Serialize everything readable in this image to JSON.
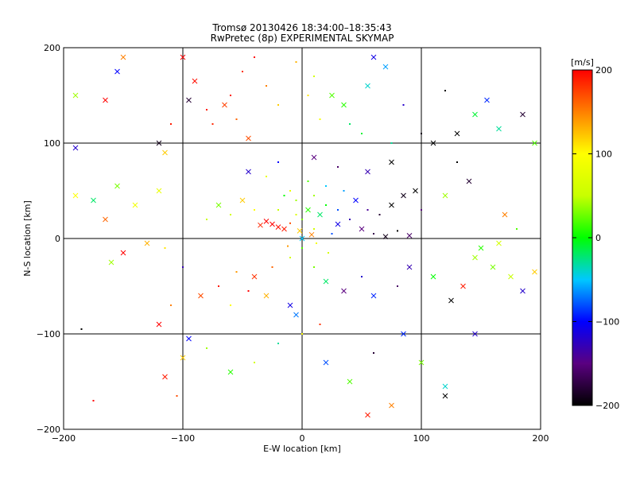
{
  "chart_data": {
    "type": "scatter",
    "title": "Tromsø 20130426 18:34:00–18:35:43",
    "subtitle": "RwPretec (8p) EXPERIMENTAL SKYMAP",
    "xlabel": "E-W location [km]",
    "ylabel": "N-S location [km]",
    "xlim": [
      -200,
      200
    ],
    "ylim": [
      -200,
      200
    ],
    "x_ticks": [
      "−200",
      "−100",
      "0",
      "100",
      "200"
    ],
    "x_tick_values": [
      -200,
      -100,
      0,
      100,
      200
    ],
    "y_ticks": [
      "−200",
      "−100",
      "0",
      "100",
      "200"
    ],
    "y_tick_values": [
      -200,
      -100,
      0,
      100,
      200
    ],
    "grid": true,
    "colorbar": {
      "label": "[m/s]",
      "range": [
        -200,
        200
      ],
      "ticks": [
        "−200",
        "−100",
        "0",
        "100",
        "200"
      ],
      "tick_values": [
        -200,
        -100,
        0,
        100,
        200
      ],
      "colormap": [
        "#000000",
        "#5a0080",
        "#0000ff",
        "#00c8ff",
        "#00ff00",
        "#c8ff00",
        "#ffff00",
        "#ff8000",
        "#ff0000"
      ]
    },
    "markers": [
      "dot",
      "x"
    ],
    "points": [
      {
        "x": -60,
        "y": 150,
        "v": 190,
        "m": "dot"
      },
      {
        "x": -75,
        "y": 120,
        "v": 185,
        "m": "dot"
      },
      {
        "x": -90,
        "y": 165,
        "v": 195,
        "m": "x"
      },
      {
        "x": -50,
        "y": 175,
        "v": 180,
        "m": "dot"
      },
      {
        "x": -40,
        "y": 190,
        "v": 200,
        "m": "dot"
      },
      {
        "x": -65,
        "y": 140,
        "v": 175,
        "m": "x"
      },
      {
        "x": -80,
        "y": 135,
        "v": 190,
        "m": "dot"
      },
      {
        "x": -55,
        "y": 125,
        "v": 160,
        "m": "dot"
      },
      {
        "x": -100,
        "y": 190,
        "v": 200,
        "m": "x"
      },
      {
        "x": -30,
        "y": 160,
        "v": 150,
        "m": "dot"
      },
      {
        "x": -20,
        "y": 140,
        "v": 120,
        "m": "dot"
      },
      {
        "x": -45,
        "y": 105,
        "v": 170,
        "m": "x"
      },
      {
        "x": -95,
        "y": 145,
        "v": -180,
        "m": "x"
      },
      {
        "x": -150,
        "y": 190,
        "v": 150,
        "m": "x"
      },
      {
        "x": -165,
        "y": 145,
        "v": 200,
        "m": "x"
      },
      {
        "x": -190,
        "y": 150,
        "v": 40,
        "m": "x"
      },
      {
        "x": -155,
        "y": 175,
        "v": -100,
        "m": "x"
      },
      {
        "x": -110,
        "y": 120,
        "v": 190,
        "m": "dot"
      },
      {
        "x": 10,
        "y": 170,
        "v": 60,
        "m": "dot"
      },
      {
        "x": 25,
        "y": 150,
        "v": 20,
        "m": "x"
      },
      {
        "x": 40,
        "y": 120,
        "v": -20,
        "m": "dot"
      },
      {
        "x": 55,
        "y": 160,
        "v": -40,
        "m": "x"
      },
      {
        "x": 70,
        "y": 180,
        "v": -60,
        "m": "x"
      },
      {
        "x": 85,
        "y": 140,
        "v": -120,
        "m": "dot"
      },
      {
        "x": 60,
        "y": 190,
        "v": -110,
        "m": "x"
      },
      {
        "x": 35,
        "y": 140,
        "v": 10,
        "m": "x"
      },
      {
        "x": 15,
        "y": 125,
        "v": 90,
        "m": "dot"
      },
      {
        "x": 5,
        "y": 150,
        "v": 110,
        "m": "dot"
      },
      {
        "x": -5,
        "y": 185,
        "v": 130,
        "m": "dot"
      },
      {
        "x": 50,
        "y": 110,
        "v": -10,
        "m": "dot"
      },
      {
        "x": 100,
        "y": 110,
        "v": -190,
        "m": "dot"
      },
      {
        "x": 110,
        "y": 100,
        "v": -200,
        "m": "x"
      },
      {
        "x": 155,
        "y": 145,
        "v": -90,
        "m": "x"
      },
      {
        "x": 165,
        "y": 115,
        "v": -30,
        "m": "x"
      },
      {
        "x": 185,
        "y": 130,
        "v": -180,
        "m": "x"
      },
      {
        "x": 195,
        "y": 100,
        "v": 20,
        "m": "x"
      },
      {
        "x": 130,
        "y": 110,
        "v": -200,
        "m": "x"
      },
      {
        "x": 145,
        "y": 130,
        "v": -10,
        "m": "x"
      },
      {
        "x": 120,
        "y": 155,
        "v": -200,
        "m": "dot"
      },
      {
        "x": 75,
        "y": 100,
        "v": -30,
        "m": "dot"
      },
      {
        "x": -25,
        "y": 15,
        "v": 200,
        "m": "x"
      },
      {
        "x": -20,
        "y": 12,
        "v": 195,
        "m": "x"
      },
      {
        "x": -30,
        "y": 18,
        "v": 200,
        "m": "x"
      },
      {
        "x": -15,
        "y": 10,
        "v": 190,
        "m": "x"
      },
      {
        "x": -35,
        "y": 14,
        "v": 185,
        "m": "x"
      },
      {
        "x": -10,
        "y": 16,
        "v": 170,
        "m": "dot"
      },
      {
        "x": 0,
        "y": 20,
        "v": 30,
        "m": "dot"
      },
      {
        "x": 5,
        "y": 30,
        "v": 10,
        "m": "x"
      },
      {
        "x": -5,
        "y": 40,
        "v": 40,
        "m": "dot"
      },
      {
        "x": 10,
        "y": 10,
        "v": 60,
        "m": "dot"
      },
      {
        "x": 15,
        "y": 25,
        "v": -20,
        "m": "x"
      },
      {
        "x": 20,
        "y": 35,
        "v": 0,
        "m": "dot"
      },
      {
        "x": -10,
        "y": 50,
        "v": 80,
        "m": "dot"
      },
      {
        "x": 0,
        "y": 0,
        "v": -50,
        "m": "x"
      },
      {
        "x": 25,
        "y": 5,
        "v": -80,
        "m": "dot"
      },
      {
        "x": 30,
        "y": 15,
        "v": -110,
        "m": "x"
      },
      {
        "x": 40,
        "y": 20,
        "v": -130,
        "m": "dot"
      },
      {
        "x": 50,
        "y": 10,
        "v": -150,
        "m": "x"
      },
      {
        "x": 60,
        "y": 5,
        "v": -170,
        "m": "dot"
      },
      {
        "x": 70,
        "y": 2,
        "v": -190,
        "m": "x"
      },
      {
        "x": 80,
        "y": 8,
        "v": -200,
        "m": "dot"
      },
      {
        "x": 90,
        "y": 3,
        "v": -160,
        "m": "x"
      },
      {
        "x": 45,
        "y": 40,
        "v": -100,
        "m": "x"
      },
      {
        "x": 55,
        "y": 30,
        "v": -140,
        "m": "dot"
      },
      {
        "x": 65,
        "y": 25,
        "v": -180,
        "m": "dot"
      },
      {
        "x": 75,
        "y": 35,
        "v": -200,
        "m": "x"
      },
      {
        "x": 85,
        "y": 45,
        "v": -190,
        "m": "x"
      },
      {
        "x": 95,
        "y": 50,
        "v": -200,
        "m": "x"
      },
      {
        "x": 100,
        "y": 30,
        "v": -150,
        "m": "dot"
      },
      {
        "x": 35,
        "y": 50,
        "v": -60,
        "m": "dot"
      },
      {
        "x": -40,
        "y": 30,
        "v": 100,
        "m": "dot"
      },
      {
        "x": -50,
        "y": 40,
        "v": 120,
        "m": "x"
      },
      {
        "x": -60,
        "y": 25,
        "v": 60,
        "m": "dot"
      },
      {
        "x": -70,
        "y": 35,
        "v": 30,
        "m": "x"
      },
      {
        "x": -80,
        "y": 20,
        "v": 50,
        "m": "dot"
      },
      {
        "x": -45,
        "y": 70,
        "v": -120,
        "m": "x"
      },
      {
        "x": -30,
        "y": 65,
        "v": 80,
        "m": "dot"
      },
      {
        "x": -20,
        "y": 80,
        "v": -100,
        "m": "dot"
      },
      {
        "x": 10,
        "y": 85,
        "v": -150,
        "m": "x"
      },
      {
        "x": 30,
        "y": 75,
        "v": -160,
        "m": "dot"
      },
      {
        "x": 55,
        "y": 70,
        "v": -130,
        "m": "x"
      },
      {
        "x": 75,
        "y": 80,
        "v": -200,
        "m": "x"
      },
      {
        "x": 0,
        "y": -10,
        "v": 20,
        "m": "dot"
      },
      {
        "x": -10,
        "y": -20,
        "v": 60,
        "m": "dot"
      },
      {
        "x": -25,
        "y": -30,
        "v": 160,
        "m": "dot"
      },
      {
        "x": -40,
        "y": -40,
        "v": 180,
        "m": "x"
      },
      {
        "x": -55,
        "y": -35,
        "v": 140,
        "m": "dot"
      },
      {
        "x": -70,
        "y": -50,
        "v": 190,
        "m": "dot"
      },
      {
        "x": -85,
        "y": -60,
        "v": 170,
        "m": "x"
      },
      {
        "x": -60,
        "y": -70,
        "v": 100,
        "m": "dot"
      },
      {
        "x": -45,
        "y": -55,
        "v": 200,
        "m": "dot"
      },
      {
        "x": -30,
        "y": -60,
        "v": 130,
        "m": "x"
      },
      {
        "x": 10,
        "y": -30,
        "v": 30,
        "m": "dot"
      },
      {
        "x": 20,
        "y": -45,
        "v": -20,
        "m": "x"
      },
      {
        "x": 35,
        "y": -55,
        "v": -150,
        "m": "x"
      },
      {
        "x": 50,
        "y": -40,
        "v": -120,
        "m": "dot"
      },
      {
        "x": 60,
        "y": -60,
        "v": -90,
        "m": "x"
      },
      {
        "x": 80,
        "y": -50,
        "v": -160,
        "m": "dot"
      },
      {
        "x": 90,
        "y": -30,
        "v": -130,
        "m": "x"
      },
      {
        "x": 110,
        "y": -40,
        "v": 0,
        "m": "x"
      },
      {
        "x": 125,
        "y": -65,
        "v": -200,
        "m": "x"
      },
      {
        "x": 145,
        "y": -20,
        "v": 40,
        "m": "x"
      },
      {
        "x": 160,
        "y": -30,
        "v": 30,
        "m": "x"
      },
      {
        "x": 175,
        "y": -40,
        "v": 50,
        "m": "x"
      },
      {
        "x": 185,
        "y": -55,
        "v": -120,
        "m": "x"
      },
      {
        "x": 195,
        "y": -35,
        "v": 120,
        "m": "x"
      },
      {
        "x": 150,
        "y": -10,
        "v": 10,
        "m": "x"
      },
      {
        "x": 165,
        "y": -5,
        "v": 60,
        "m": "x"
      },
      {
        "x": 135,
        "y": -50,
        "v": 190,
        "m": "x"
      },
      {
        "x": 170,
        "y": 25,
        "v": 150,
        "m": "x"
      },
      {
        "x": 180,
        "y": 10,
        "v": 20,
        "m": "dot"
      },
      {
        "x": 140,
        "y": 60,
        "v": -180,
        "m": "x"
      },
      {
        "x": 120,
        "y": 45,
        "v": 40,
        "m": "x"
      },
      {
        "x": 130,
        "y": 80,
        "v": -200,
        "m": "dot"
      },
      {
        "x": -120,
        "y": 50,
        "v": 80,
        "m": "x"
      },
      {
        "x": -140,
        "y": 35,
        "v": 90,
        "m": "x"
      },
      {
        "x": -155,
        "y": 55,
        "v": 30,
        "m": "x"
      },
      {
        "x": -165,
        "y": 20,
        "v": 160,
        "m": "x"
      },
      {
        "x": -175,
        "y": 40,
        "v": -20,
        "m": "x"
      },
      {
        "x": -190,
        "y": 45,
        "v": 100,
        "m": "x"
      },
      {
        "x": -150,
        "y": -15,
        "v": 200,
        "m": "x"
      },
      {
        "x": -130,
        "y": -5,
        "v": 130,
        "m": "x"
      },
      {
        "x": -115,
        "y": -10,
        "v": 110,
        "m": "dot"
      },
      {
        "x": -160,
        "y": -25,
        "v": 40,
        "m": "x"
      },
      {
        "x": -100,
        "y": -30,
        "v": -130,
        "m": "dot"
      },
      {
        "x": -110,
        "y": -70,
        "v": 150,
        "m": "dot"
      },
      {
        "x": -120,
        "y": -90,
        "v": 200,
        "m": "x"
      },
      {
        "x": -95,
        "y": -105,
        "v": -100,
        "m": "x"
      },
      {
        "x": -100,
        "y": -125,
        "v": 120,
        "m": "x"
      },
      {
        "x": -115,
        "y": -145,
        "v": 190,
        "m": "x"
      },
      {
        "x": -105,
        "y": -165,
        "v": 170,
        "m": "dot"
      },
      {
        "x": -80,
        "y": -115,
        "v": 40,
        "m": "dot"
      },
      {
        "x": -60,
        "y": -140,
        "v": 10,
        "m": "x"
      },
      {
        "x": -40,
        "y": -130,
        "v": 60,
        "m": "dot"
      },
      {
        "x": -20,
        "y": -110,
        "v": -30,
        "m": "dot"
      },
      {
        "x": 0,
        "y": -100,
        "v": 100,
        "m": "dot"
      },
      {
        "x": 20,
        "y": -130,
        "v": -80,
        "m": "x"
      },
      {
        "x": 40,
        "y": -150,
        "v": 20,
        "m": "x"
      },
      {
        "x": 55,
        "y": -185,
        "v": 190,
        "m": "x"
      },
      {
        "x": 75,
        "y": -175,
        "v": 150,
        "m": "x"
      },
      {
        "x": 60,
        "y": -120,
        "v": -180,
        "m": "dot"
      },
      {
        "x": 85,
        "y": -100,
        "v": -90,
        "m": "x"
      },
      {
        "x": 100,
        "y": -130,
        "v": 30,
        "m": "x"
      },
      {
        "x": 120,
        "y": -155,
        "v": -40,
        "m": "x"
      },
      {
        "x": 120,
        "y": -165,
        "v": -200,
        "m": "x"
      },
      {
        "x": 145,
        "y": -100,
        "v": -120,
        "m": "x"
      },
      {
        "x": -10,
        "y": -70,
        "v": -110,
        "m": "x"
      },
      {
        "x": -5,
        "y": -80,
        "v": -70,
        "m": "x"
      },
      {
        "x": 15,
        "y": -90,
        "v": 180,
        "m": "dot"
      },
      {
        "x": -175,
        "y": -170,
        "v": 200,
        "m": "dot"
      },
      {
        "x": -185,
        "y": -95,
        "v": -200,
        "m": "dot"
      },
      {
        "x": -190,
        "y": 95,
        "v": -120,
        "m": "x"
      },
      {
        "x": -120,
        "y": 100,
        "v": -190,
        "m": "x"
      },
      {
        "x": -115,
        "y": 90,
        "v": 120,
        "m": "x"
      },
      {
        "x": 5,
        "y": 60,
        "v": 20,
        "m": "dot"
      },
      {
        "x": -15,
        "y": 45,
        "v": 0,
        "m": "dot"
      },
      {
        "x": 10,
        "y": 45,
        "v": 40,
        "m": "dot"
      },
      {
        "x": -5,
        "y": 25,
        "v": 70,
        "m": "dot"
      },
      {
        "x": 20,
        "y": 55,
        "v": -50,
        "m": "dot"
      },
      {
        "x": -20,
        "y": 30,
        "v": 50,
        "m": "dot"
      },
      {
        "x": 30,
        "y": 30,
        "v": -80,
        "m": "dot"
      },
      {
        "x": 8,
        "y": 4,
        "v": 150,
        "m": "x"
      },
      {
        "x": -2,
        "y": 8,
        "v": 120,
        "m": "x"
      },
      {
        "x": 12,
        "y": -5,
        "v": 90,
        "m": "dot"
      },
      {
        "x": -12,
        "y": -8,
        "v": 140,
        "m": "dot"
      },
      {
        "x": 22,
        "y": -15,
        "v": 60,
        "m": "dot"
      }
    ]
  }
}
